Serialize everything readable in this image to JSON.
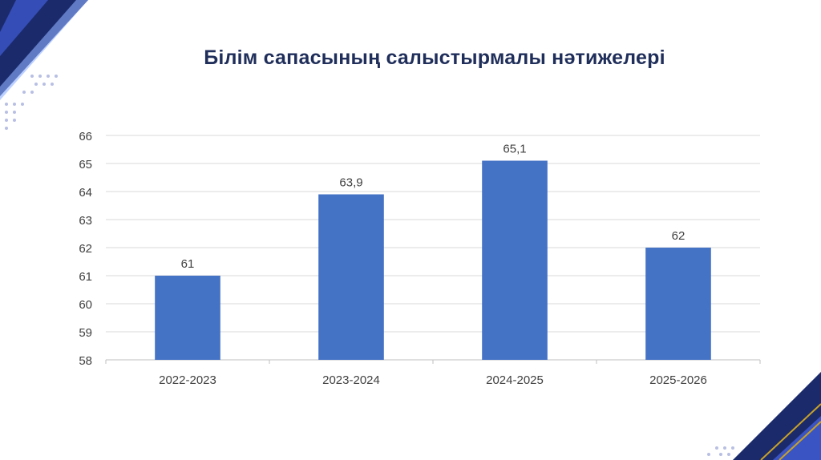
{
  "slide": {
    "title": "Білім сапасының салыстырмалы нәтижелері"
  },
  "colors": {
    "bar": "#4472c4",
    "title": "#1f2e5a",
    "grid": "#d9d9d9",
    "axis_text": "#404040",
    "deco_navy": "#1b2a6b",
    "deco_gold": "#c9a227"
  },
  "chart_data": {
    "type": "bar",
    "title": "",
    "xlabel": "",
    "ylabel": "",
    "categories": [
      "2022-2023",
      "2023-2024",
      "2024-2025",
      "2025-2026"
    ],
    "values": [
      61,
      63.9,
      65.1,
      62
    ],
    "data_labels": [
      "61",
      "63,9",
      "65,1",
      "62"
    ],
    "ylim": [
      58,
      66
    ],
    "yticks": [
      58,
      59,
      60,
      61,
      62,
      63,
      64,
      65,
      66
    ],
    "grid": true,
    "legend": "none"
  }
}
